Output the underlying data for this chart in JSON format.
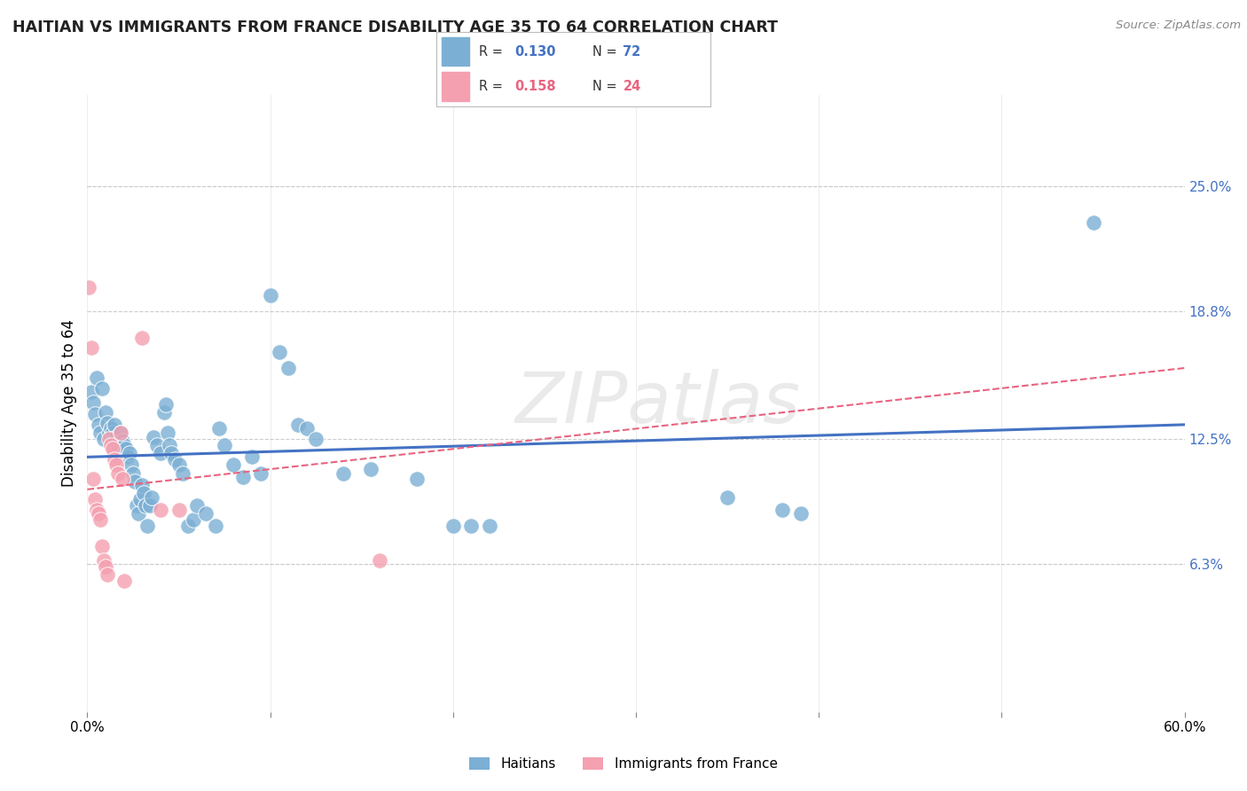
{
  "title": "HAITIAN VS IMMIGRANTS FROM FRANCE DISABILITY AGE 35 TO 64 CORRELATION CHART",
  "source": "Source: ZipAtlas.com",
  "ylabel": "Disability Age 35 to 64",
  "xlim": [
    0.0,
    0.6
  ],
  "ylim": [
    -0.01,
    0.295
  ],
  "xticks": [
    0.0,
    0.1,
    0.2,
    0.3,
    0.4,
    0.5,
    0.6
  ],
  "ytick_vals": [
    0.063,
    0.125,
    0.188,
    0.25
  ],
  "ytick_labels": [
    "6.3%",
    "12.5%",
    "18.8%",
    "25.0%"
  ],
  "watermark": "ZIPatlas",
  "legend_label_blue": "Haitians",
  "legend_label_pink": "Immigrants from France",
  "blue_color": "#7BAFD4",
  "pink_color": "#F4A0B0",
  "blue_line_color": "#4472C4",
  "pink_line_color": "#E86480",
  "blue_scatter": [
    [
      0.002,
      0.148
    ],
    [
      0.003,
      0.143
    ],
    [
      0.004,
      0.137
    ],
    [
      0.005,
      0.155
    ],
    [
      0.006,
      0.132
    ],
    [
      0.007,
      0.128
    ],
    [
      0.008,
      0.15
    ],
    [
      0.009,
      0.125
    ],
    [
      0.01,
      0.138
    ],
    [
      0.011,
      0.133
    ],
    [
      0.012,
      0.128
    ],
    [
      0.013,
      0.13
    ],
    [
      0.014,
      0.128
    ],
    [
      0.015,
      0.132
    ],
    [
      0.016,
      0.126
    ],
    [
      0.017,
      0.122
    ],
    [
      0.018,
      0.128
    ],
    [
      0.019,
      0.124
    ],
    [
      0.02,
      0.122
    ],
    [
      0.021,
      0.12
    ],
    [
      0.022,
      0.116
    ],
    [
      0.023,
      0.118
    ],
    [
      0.024,
      0.112
    ],
    [
      0.025,
      0.108
    ],
    [
      0.026,
      0.104
    ],
    [
      0.027,
      0.092
    ],
    [
      0.028,
      0.088
    ],
    [
      0.029,
      0.095
    ],
    [
      0.03,
      0.102
    ],
    [
      0.031,
      0.098
    ],
    [
      0.032,
      0.092
    ],
    [
      0.033,
      0.082
    ],
    [
      0.034,
      0.092
    ],
    [
      0.035,
      0.096
    ],
    [
      0.036,
      0.126
    ],
    [
      0.038,
      0.122
    ],
    [
      0.04,
      0.118
    ],
    [
      0.042,
      0.138
    ],
    [
      0.043,
      0.142
    ],
    [
      0.044,
      0.128
    ],
    [
      0.045,
      0.122
    ],
    [
      0.046,
      0.118
    ],
    [
      0.048,
      0.115
    ],
    [
      0.05,
      0.112
    ],
    [
      0.052,
      0.108
    ],
    [
      0.055,
      0.082
    ],
    [
      0.058,
      0.085
    ],
    [
      0.06,
      0.092
    ],
    [
      0.065,
      0.088
    ],
    [
      0.07,
      0.082
    ],
    [
      0.072,
      0.13
    ],
    [
      0.075,
      0.122
    ],
    [
      0.08,
      0.112
    ],
    [
      0.085,
      0.106
    ],
    [
      0.09,
      0.116
    ],
    [
      0.095,
      0.108
    ],
    [
      0.1,
      0.196
    ],
    [
      0.105,
      0.168
    ],
    [
      0.11,
      0.16
    ],
    [
      0.115,
      0.132
    ],
    [
      0.12,
      0.13
    ],
    [
      0.125,
      0.125
    ],
    [
      0.14,
      0.108
    ],
    [
      0.155,
      0.11
    ],
    [
      0.18,
      0.105
    ],
    [
      0.2,
      0.082
    ],
    [
      0.21,
      0.082
    ],
    [
      0.22,
      0.082
    ],
    [
      0.35,
      0.096
    ],
    [
      0.38,
      0.09
    ],
    [
      0.39,
      0.088
    ],
    [
      0.55,
      0.232
    ]
  ],
  "pink_scatter": [
    [
      0.001,
      0.2
    ],
    [
      0.002,
      0.17
    ],
    [
      0.003,
      0.105
    ],
    [
      0.004,
      0.095
    ],
    [
      0.005,
      0.09
    ],
    [
      0.006,
      0.088
    ],
    [
      0.007,
      0.085
    ],
    [
      0.008,
      0.072
    ],
    [
      0.009,
      0.065
    ],
    [
      0.01,
      0.062
    ],
    [
      0.011,
      0.058
    ],
    [
      0.012,
      0.125
    ],
    [
      0.013,
      0.122
    ],
    [
      0.014,
      0.12
    ],
    [
      0.015,
      0.115
    ],
    [
      0.016,
      0.112
    ],
    [
      0.017,
      0.108
    ],
    [
      0.018,
      0.128
    ],
    [
      0.019,
      0.105
    ],
    [
      0.02,
      0.055
    ],
    [
      0.03,
      0.175
    ],
    [
      0.04,
      0.09
    ],
    [
      0.05,
      0.09
    ],
    [
      0.16,
      0.065
    ]
  ],
  "blue_line_x": [
    0.0,
    0.6
  ],
  "blue_line_y": [
    0.116,
    0.132
  ],
  "pink_line_x": [
    0.0,
    0.6
  ],
  "pink_line_y": [
    0.1,
    0.16
  ],
  "background_color": "#FFFFFF",
  "grid_color": "#CCCCCC"
}
